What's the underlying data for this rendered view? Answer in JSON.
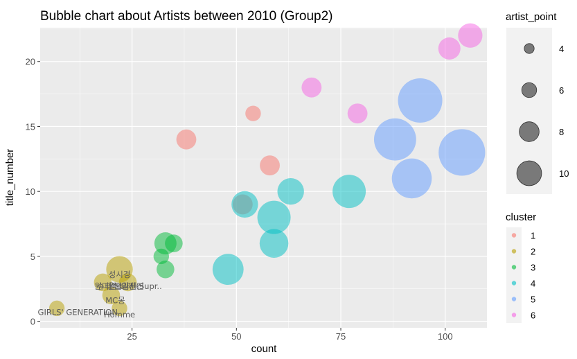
{
  "chart_data": {
    "type": "scatter",
    "title": "Bubble chart about Artists between 2010 (Group2)",
    "xlabel": "count",
    "ylabel": "title_number",
    "xlim": [
      3,
      110
    ],
    "ylim": [
      -0.5,
      22.6
    ],
    "x_ticks": [
      25,
      50,
      75,
      100
    ],
    "y_ticks": [
      0,
      5,
      10,
      15,
      20
    ],
    "grid": true,
    "size_legend": {
      "title": "artist_point",
      "entries": [
        {
          "label": "4",
          "value": 4
        },
        {
          "label": "6",
          "value": 6
        },
        {
          "label": "8",
          "value": 8
        },
        {
          "label": "10",
          "value": 10
        }
      ]
    },
    "color_legend": {
      "title": "cluster",
      "entries": [
        {
          "label": "1",
          "color": "#F8766D"
        },
        {
          "label": "2",
          "color": "#B79F00"
        },
        {
          "label": "3",
          "color": "#00BA38"
        },
        {
          "label": "4",
          "color": "#00BFC4"
        },
        {
          "label": "5",
          "color": "#619CFF"
        },
        {
          "label": "6",
          "color": "#F564E3"
        }
      ]
    },
    "points": [
      {
        "x": 38,
        "y": 14,
        "size": 4.5,
        "cluster": 1
      },
      {
        "x": 54,
        "y": 16,
        "size": 3.5,
        "cluster": 1
      },
      {
        "x": 58,
        "y": 12,
        "size": 4.5,
        "cluster": 1
      },
      {
        "x": 51.5,
        "y": 9,
        "size": 4.5,
        "cluster": 1
      },
      {
        "x": 7,
        "y": 1,
        "size": 3.5,
        "cluster": 2
      },
      {
        "x": 18,
        "y": 3,
        "size": 4,
        "cluster": 2
      },
      {
        "x": 22,
        "y": 4,
        "size": 6,
        "cluster": 2
      },
      {
        "x": 20,
        "y": 2,
        "size": 4,
        "cluster": 2
      },
      {
        "x": 24,
        "y": 3,
        "size": 4,
        "cluster": 2
      },
      {
        "x": 22,
        "y": 1,
        "size": 3.5,
        "cluster": 2
      },
      {
        "x": 33,
        "y": 6,
        "size": 5,
        "cluster": 3
      },
      {
        "x": 35,
        "y": 6,
        "size": 4,
        "cluster": 3
      },
      {
        "x": 32,
        "y": 5,
        "size": 3.5,
        "cluster": 3
      },
      {
        "x": 33,
        "y": 4,
        "size": 4,
        "cluster": 3
      },
      {
        "x": 48,
        "y": 4,
        "size": 7,
        "cluster": 4
      },
      {
        "x": 52,
        "y": 9,
        "size": 6,
        "cluster": 4
      },
      {
        "x": 59,
        "y": 8,
        "size": 7.5,
        "cluster": 4
      },
      {
        "x": 59,
        "y": 6,
        "size": 6.5,
        "cluster": 4
      },
      {
        "x": 63,
        "y": 10,
        "size": 6,
        "cluster": 4
      },
      {
        "x": 77,
        "y": 10,
        "size": 7.5,
        "cluster": 4
      },
      {
        "x": 88,
        "y": 14,
        "size": 9.5,
        "cluster": 5
      },
      {
        "x": 92,
        "y": 11,
        "size": 9,
        "cluster": 5
      },
      {
        "x": 94,
        "y": 17,
        "size": 10,
        "cluster": 5
      },
      {
        "x": 104,
        "y": 13,
        "size": 10.5,
        "cluster": 5
      },
      {
        "x": 68,
        "y": 18,
        "size": 4.5,
        "cluster": 6
      },
      {
        "x": 79,
        "y": 16,
        "size": 4.5,
        "cluster": 6
      },
      {
        "x": 101,
        "y": 21,
        "size": 5,
        "cluster": 6
      },
      {
        "x": 106,
        "y": 22,
        "size": 5.5,
        "cluster": 6
      }
    ],
    "annotations": [
      {
        "text": "성시경",
        "x": 22,
        "y": 3.4
      },
      {
        "text": "원더걸스",
        "x": 19.5,
        "y": 2.5
      },
      {
        "text": "슈퍼주니어",
        "x": 21,
        "y": 2.5
      },
      {
        "text": "울랄라세션",
        "x": 23.5,
        "y": 2.5
      },
      {
        "text": "일진(Supr..",
        "x": 27.3,
        "y": 2.5
      },
      {
        "text": "MC몽",
        "x": 21,
        "y": 1.4
      },
      {
        "text": "GIRLS' GENERATION",
        "x": 12,
        "y": 0.5
      },
      {
        "text": "Homme",
        "x": 22,
        "y": 0.3
      }
    ]
  }
}
